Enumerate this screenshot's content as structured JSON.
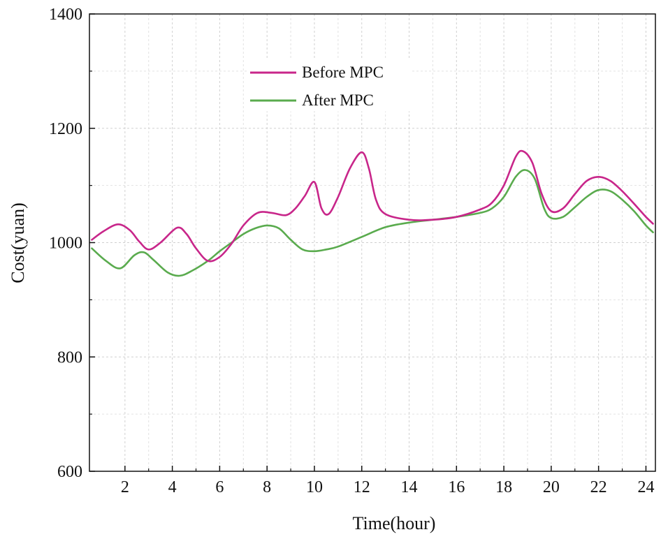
{
  "chart_data": {
    "type": "line",
    "xlabel": "Time(hour)",
    "ylabel": "Cost(yuan)",
    "xlim": [
      0.5,
      24.4
    ],
    "ylim": [
      600,
      1400
    ],
    "xticks": [
      2,
      4,
      6,
      8,
      10,
      12,
      14,
      16,
      18,
      20,
      22,
      24
    ],
    "yticks": [
      600,
      800,
      1000,
      1200,
      1400
    ],
    "grid": true,
    "legend_position": "top-center",
    "series": [
      {
        "name": "Before MPC",
        "color": "#c8268a",
        "x": [
          0.6,
          1.1,
          1.7,
          2.2,
          2.6,
          3.0,
          3.5,
          4.2,
          4.6,
          5.0,
          5.5,
          6.0,
          6.5,
          7.0,
          7.6,
          8.2,
          8.8,
          9.2,
          9.6,
          10.0,
          10.3,
          10.6,
          11.0,
          11.5,
          12.0,
          12.3,
          12.6,
          13.0,
          14.0,
          15.0,
          16.0,
          17.0,
          17.5,
          18.0,
          18.5,
          18.8,
          19.2,
          19.6,
          20.0,
          20.5,
          21.0,
          21.5,
          22.0,
          22.5,
          23.0,
          23.5,
          24.0,
          24.3
        ],
        "values": [
          1005,
          1020,
          1032,
          1022,
          1002,
          988,
          1000,
          1026,
          1015,
          990,
          968,
          975,
          998,
          1030,
          1052,
          1052,
          1048,
          1060,
          1082,
          1106,
          1060,
          1050,
          1080,
          1130,
          1158,
          1130,
          1075,
          1050,
          1040,
          1040,
          1045,
          1058,
          1070,
          1100,
          1150,
          1160,
          1140,
          1085,
          1055,
          1060,
          1085,
          1108,
          1115,
          1108,
          1090,
          1068,
          1045,
          1033
        ]
      },
      {
        "name": "After MPC",
        "color": "#5aab4e",
        "x": [
          0.6,
          1.2,
          1.8,
          2.4,
          2.8,
          3.2,
          3.8,
          4.3,
          4.8,
          5.5,
          6.0,
          6.5,
          7.0,
          7.5,
          8.0,
          8.5,
          9.0,
          9.5,
          10.0,
          10.5,
          11.0,
          12.0,
          13.0,
          14.0,
          15.0,
          16.0,
          17.0,
          17.5,
          18.0,
          18.5,
          18.9,
          19.3,
          19.7,
          20.0,
          20.5,
          21.0,
          21.5,
          22.0,
          22.5,
          23.0,
          23.5,
          24.0,
          24.3
        ],
        "values": [
          990,
          968,
          955,
          978,
          983,
          970,
          948,
          942,
          950,
          968,
          985,
          1000,
          1015,
          1025,
          1030,
          1025,
          1005,
          988,
          985,
          988,
          993,
          1010,
          1027,
          1035,
          1040,
          1045,
          1052,
          1060,
          1080,
          1115,
          1127,
          1112,
          1060,
          1043,
          1045,
          1062,
          1080,
          1092,
          1090,
          1075,
          1055,
          1030,
          1018
        ]
      }
    ]
  }
}
